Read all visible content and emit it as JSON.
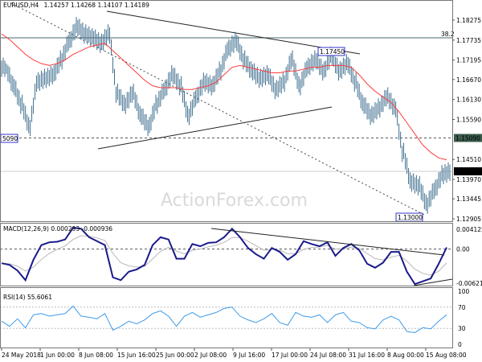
{
  "header": {
    "symbol": "EURUSD,H4",
    "ohlc": "1.14257 1.14268 1.14107 1.14189"
  },
  "watermark": "ActionForex.com",
  "colors": {
    "bars": "#3f6f8f",
    "ma": "#ff3b3b",
    "macd": "#1a1a8c",
    "signal": "#b8b8b8",
    "rsi": "#3d9be9",
    "current_price_bg": "#000000",
    "level_bg": "#3b5b4b"
  },
  "annotations": {
    "fib_label": "38.2",
    "high_label": "1.17450",
    "low_label": "1.13000",
    "left_level_label": "5090",
    "level_label": "1.15090",
    "current_price_label": "1.14189"
  },
  "chart_data": [
    {
      "type": "line",
      "title": "EURUSD,H4",
      "price_ticks": [
        "1.18275",
        "1.17735",
        "1.17195",
        "1.16670",
        "1.16130",
        "1.15590",
        "1.15090",
        "1.14510",
        "1.14189",
        "1.13970",
        "1.13445",
        "1.12905"
      ],
      "ylim": [
        1.12905,
        1.18275
      ],
      "x_ticks": [
        "24 May 2018",
        "1 Jun 00:00",
        "8 Jun 08:00",
        "15 Jun 16:00",
        "25 Jun 00:00",
        "2 Jul 08:00",
        "9 Jul 16:00",
        "17 Jul 00:00",
        "24 Jul 08:00",
        "31 Jul 16:00",
        "8 Aug 00:00",
        "15 Aug 08:00"
      ],
      "close": [
        1.17,
        1.165,
        1.16,
        1.154,
        1.166,
        1.167,
        1.168,
        1.172,
        1.177,
        1.181,
        1.179,
        1.178,
        1.1765,
        1.179,
        1.163,
        1.16,
        1.163,
        1.157,
        1.154,
        1.16,
        1.164,
        1.168,
        1.165,
        1.157,
        1.162,
        1.166,
        1.165,
        1.169,
        1.175,
        1.177,
        1.172,
        1.169,
        1.167,
        1.168,
        1.164,
        1.166,
        1.172,
        1.165,
        1.17,
        1.172,
        1.169,
        1.173,
        1.169,
        1.171,
        1.166,
        1.16,
        1.157,
        1.159,
        1.162,
        1.159,
        1.147,
        1.139,
        1.138,
        1.133,
        1.137,
        1.141,
        1.14189
      ],
      "moving_average": [
        1.179,
        1.1775,
        1.1755,
        1.1735,
        1.172,
        1.171,
        1.1705,
        1.171,
        1.172,
        1.1735,
        1.1745,
        1.1755,
        1.176,
        1.1765,
        1.1745,
        1.1725,
        1.1705,
        1.1685,
        1.1665,
        1.165,
        1.1645,
        1.1645,
        1.1645,
        1.164,
        1.164,
        1.1645,
        1.165,
        1.166,
        1.168,
        1.17,
        1.1705,
        1.17,
        1.1695,
        1.169,
        1.1685,
        1.1685,
        1.169,
        1.169,
        1.1695,
        1.17,
        1.17,
        1.1705,
        1.1705,
        1.1705,
        1.17,
        1.168,
        1.1655,
        1.1635,
        1.162,
        1.1605,
        1.158,
        1.155,
        1.152,
        1.149,
        1.147,
        1.1455,
        1.145
      ]
    },
    {
      "type": "line",
      "title": "MACD(12,26,9) 0.000293 -0.000936",
      "ticks": [
        "0.004125",
        "0.00",
        "-0.006218"
      ],
      "ylim": [
        -0.0066,
        0.0045
      ],
      "macd": [
        -0.0025,
        -0.0028,
        -0.0038,
        -0.0055,
        -0.0019,
        0.0007,
        0.0012,
        0.0013,
        0.0017,
        0.0038,
        0.0036,
        0.0021,
        0.0014,
        0.0007,
        -0.005,
        -0.0055,
        -0.004,
        -0.0036,
        -0.0028,
        0.0007,
        0.0021,
        0.0017,
        -0.0017,
        -0.0017,
        0.0009,
        0.0005,
        0.0011,
        0.0012,
        0.0021,
        0.0036,
        0.0021,
        0.0002,
        -0.0009,
        -0.0017,
        0.0002,
        -0.0005,
        -0.0019,
        -0.0009,
        0.0014,
        0.0009,
        0.0005,
        0.0012,
        -0.0012,
        0.0002,
        0.0009,
        -0.0002,
        -0.0026,
        -0.0033,
        -0.0024,
        -0.0005,
        -0.0005,
        -0.004,
        -0.0062,
        -0.0057,
        -0.0052,
        -0.0026,
        0.000293
      ]
    },
    {
      "type": "line",
      "title": "RSI(14) 55.6061",
      "ticks": [
        "100",
        "70",
        "30",
        "0"
      ],
      "ylim": [
        0,
        100
      ],
      "rsi": [
        43.5,
        34,
        48,
        31,
        55.5,
        58,
        53,
        55.5,
        58,
        72,
        53,
        51,
        48,
        58,
        26.6,
        34,
        43.5,
        38.7,
        46,
        58,
        63,
        53,
        34,
        53,
        60,
        51,
        55.5,
        60,
        67.6,
        70,
        53,
        46,
        41,
        48,
        58,
        41,
        36,
        60,
        53,
        51,
        55.5,
        41,
        55.5,
        60,
        43.5,
        41,
        31.4,
        29,
        46,
        53,
        46,
        24,
        22,
        31.4,
        29,
        43.5,
        55.6061
      ]
    }
  ]
}
